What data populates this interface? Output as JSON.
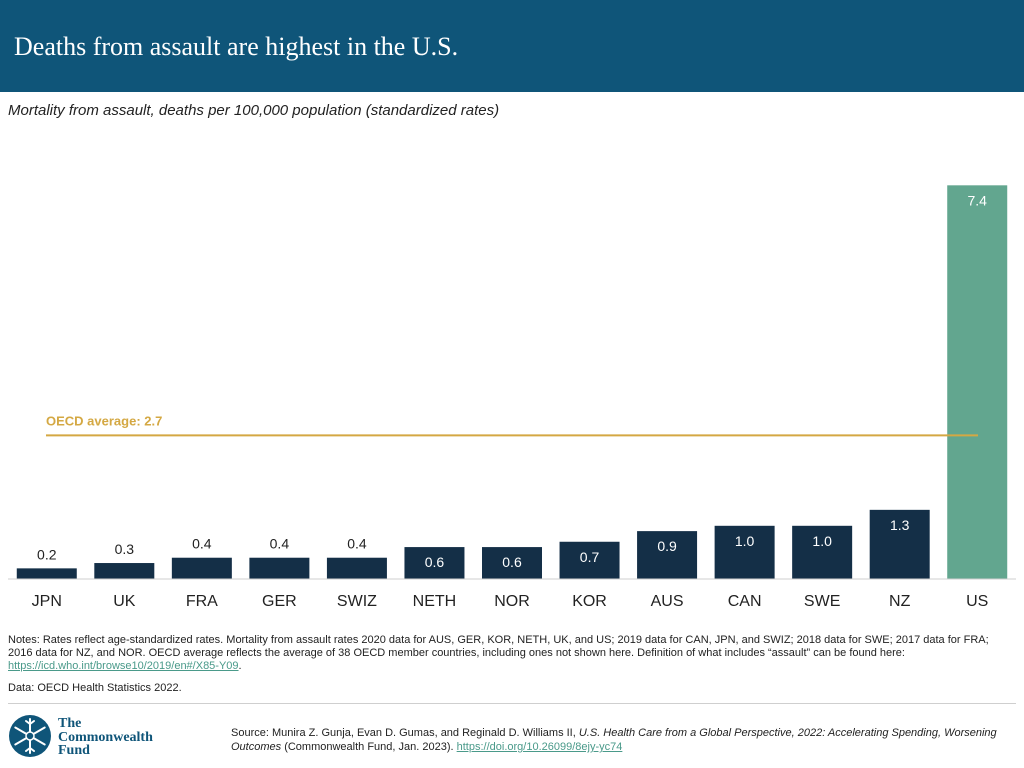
{
  "header": {
    "title": "Deaths from assault are highest in the U.S."
  },
  "subtitle": "Mortality from assault, deaths per 100,000 population (standardized rates)",
  "chart_data": {
    "type": "bar",
    "title": "Mortality from assault, deaths per 100,000 population (standardized rates)",
    "categories": [
      "JPN",
      "UK",
      "FRA",
      "GER",
      "SWIZ",
      "NETH",
      "NOR",
      "KOR",
      "AUS",
      "CAN",
      "SWE",
      "NZ",
      "US"
    ],
    "values": [
      0.2,
      0.3,
      0.4,
      0.4,
      0.4,
      0.6,
      0.6,
      0.7,
      0.9,
      1.0,
      1.0,
      1.3,
      7.4
    ],
    "value_labels": [
      "0.2",
      "0.3",
      "0.4",
      "0.4",
      "0.4",
      "0.6",
      "0.6",
      "0.7",
      "0.9",
      "1.0",
      "1.0",
      "1.3",
      "7.4"
    ],
    "ylim": [
      0,
      7.5
    ],
    "xlabel": "",
    "ylabel": "",
    "reference_line": {
      "label": "OECD average: 2.7",
      "value": 2.7
    },
    "colors": {
      "default": "#142f47",
      "highlight": "#62a68f",
      "reference": "#d4a843",
      "label_dark": "#222222",
      "label_light": "#ffffff"
    },
    "highlight_category": "US"
  },
  "notes": {
    "text": "Notes: Rates reflect age-standardized rates. Mortality from assault rates 2020 data for AUS, GER, KOR, NETH, UK, and US; 2019 data for CAN, JPN, and SWIZ; 2018 data for SWE; 2017 data for FRA; 2016 data for NZ, and NOR. OECD average reflects the average of 38 OECD member countries, including ones not shown here. Definition of what includes “assault” can be found here: ",
    "link": "https://icd.who.int/browse10/2019/en#/X85-Y09",
    "end": "."
  },
  "data_note": "Data: OECD Health Statistics 2022.",
  "logo": {
    "line1": "The",
    "line2": "Commonwealth",
    "line3": "Fund"
  },
  "source": {
    "prefix": "Source: Munira Z. Gunja, Evan D. Gumas, and Reginald D. Williams II, ",
    "title": "U.S. Health Care from a Global Perspective, 2022: Accelerating Spending, Worsening Outcomes",
    "suffix": " (Commonwealth Fund, Jan. 2023). ",
    "link": "https://doi.org/10.26099/8ejy-yc74"
  }
}
